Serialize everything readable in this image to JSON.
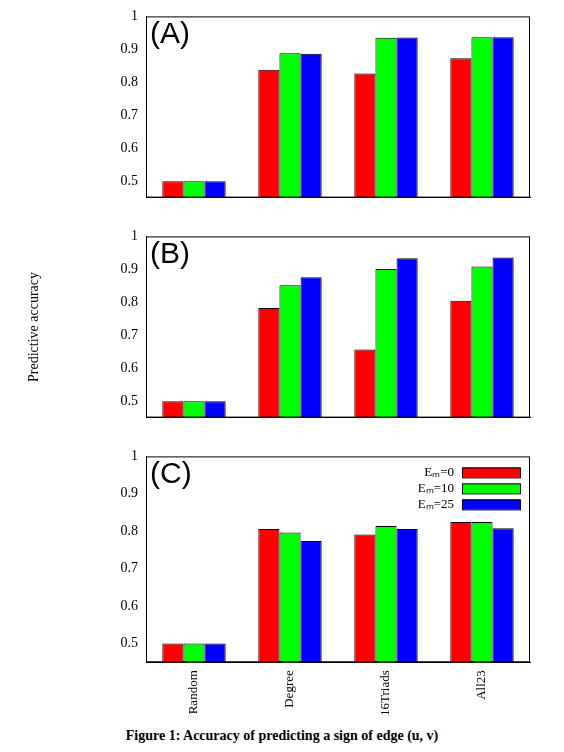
{
  "chart_data": [
    {
      "type": "bar",
      "title": "(A)",
      "categories": [
        "Random",
        "Degree",
        "16Triads",
        "All23"
      ],
      "series": [
        {
          "name": "Eₘ=0",
          "color": "#ff0000",
          "values": [
            0.5,
            0.838,
            0.827,
            0.873
          ]
        },
        {
          "name": "Eₘ=10",
          "color": "#00ff00",
          "values": [
            0.5,
            0.888,
            0.935,
            0.937
          ]
        },
        {
          "name": "Eₘ=25",
          "color": "#0000ff",
          "values": [
            0.5,
            0.887,
            0.936,
            0.937
          ]
        }
      ],
      "ylim": [
        0.45,
        1
      ],
      "yticks": [
        0.5,
        0.6,
        0.7,
        0.8,
        0.9,
        1
      ],
      "grid": false,
      "tick_labels": "y"
    },
    {
      "type": "bar",
      "title": "(B)",
      "y_label": "Predictive accuracy",
      "categories": [
        "Random",
        "Degree",
        "16Triads",
        "All23"
      ],
      "series": [
        {
          "name": "Eₘ=0",
          "color": "#ff0000",
          "values": [
            0.5,
            0.783,
            0.657,
            0.805
          ]
        },
        {
          "name": "Eₘ=10",
          "color": "#00ff00",
          "values": [
            0.5,
            0.852,
            0.901,
            0.909
          ]
        },
        {
          "name": "Eₘ=25",
          "color": "#0000ff",
          "values": [
            0.5,
            0.876,
            0.934,
            0.936
          ]
        }
      ],
      "ylim": [
        0.45,
        1
      ],
      "yticks": [
        0.5,
        0.6,
        0.7,
        0.8,
        0.9,
        1
      ],
      "grid": false,
      "tick_labels": "y"
    },
    {
      "type": "bar",
      "title": "(C)",
      "categories": [
        "Random",
        "Degree",
        "16Triads",
        "All23"
      ],
      "series": [
        {
          "name": "Eₘ=0",
          "color": "#ff0000",
          "values": [
            0.5,
            0.806,
            0.791,
            0.825
          ]
        },
        {
          "name": "Eₘ=10",
          "color": "#00ff00",
          "values": [
            0.5,
            0.797,
            0.814,
            0.825
          ]
        },
        {
          "name": "Eₘ=25",
          "color": "#0000ff",
          "values": [
            0.5,
            0.774,
            0.806,
            0.808
          ]
        }
      ],
      "ylim": [
        0.45,
        1
      ],
      "yticks": [
        0.5,
        0.6,
        0.7,
        0.8,
        0.9,
        1
      ],
      "grid": false,
      "legend": "upper right"
    }
  ],
  "caption": "Figure 1: Accuracy of predicting a sign of edge (u, v)"
}
